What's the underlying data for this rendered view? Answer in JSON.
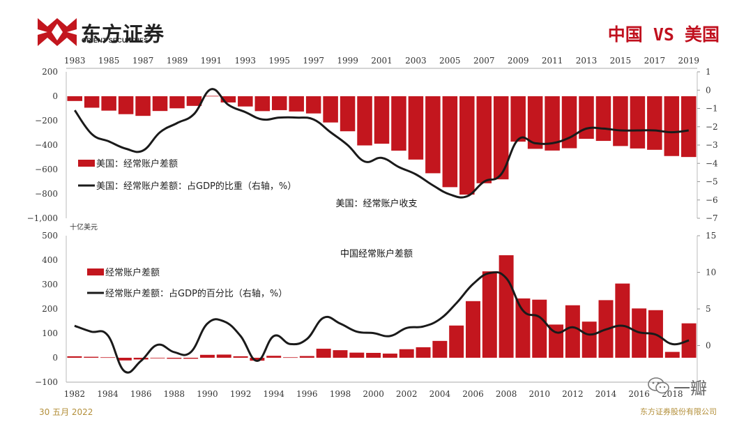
{
  "header": {
    "logo_cn": "东方证券",
    "logo_en": "ORIENT SECURITIES",
    "title": "中国 VS 美国"
  },
  "footer": {
    "date": "30 五月 2022",
    "company": "东方证券股份有限公司",
    "watermark": "一瓣"
  },
  "colors": {
    "bar": "#c3161e",
    "line": "#1a1a1a",
    "title": "#c0101e",
    "footer": "#b38f3a"
  },
  "chart_data": [
    {
      "type": "bar",
      "title": "美国：经常账户收支",
      "unit_label": "十亿美元",
      "x_ticks": [
        "1983",
        "1985",
        "1987",
        "1989",
        "1991",
        "1993",
        "1995",
        "1997",
        "1999",
        "2001",
        "2003",
        "2005",
        "2007",
        "2009",
        "2011",
        "2013",
        "2015",
        "2017",
        "2019"
      ],
      "x_axis_position": "top",
      "x": [
        1983,
        1984,
        1985,
        1986,
        1987,
        1988,
        1989,
        1990,
        1991,
        1992,
        1993,
        1994,
        1995,
        1996,
        1997,
        1998,
        1999,
        2000,
        2001,
        2002,
        2003,
        2004,
        2005,
        2006,
        2007,
        2008,
        2009,
        2010,
        2011,
        2012,
        2013,
        2014,
        2015,
        2016,
        2017,
        2018,
        2019
      ],
      "ylim": [
        -1000,
        200
      ],
      "y_ticks": [
        200,
        0,
        -200,
        -400,
        -600,
        -800,
        -1000
      ],
      "y_tick_labels": [
        "200",
        "0",
        "−200",
        "−400",
        "−600",
        "−800",
        "−1,000"
      ],
      "y2lim": [
        -7,
        1
      ],
      "y2_ticks": [
        1,
        0,
        -1,
        -2,
        -3,
        -4,
        -5,
        -6,
        -7
      ],
      "legend_position": "bottom-left",
      "series": [
        {
          "name": "美国：经常账户差额",
          "kind": "bar",
          "axis": "left",
          "values": [
            -39,
            -94,
            -118,
            -147,
            -161,
            -121,
            -99,
            -79,
            3,
            -51,
            -84,
            -122,
            -114,
            -125,
            -141,
            -215,
            -287,
            -403,
            -389,
            -446,
            -519,
            -631,
            -745,
            -806,
            -713,
            -681,
            -372,
            -431,
            -445,
            -426,
            -349,
            -366,
            -408,
            -428,
            -439,
            -490,
            -498
          ]
        },
        {
          "name": "美国：经常账户差额：占GDP的比重（右轴，%）",
          "kind": "line",
          "axis": "right",
          "values": [
            -1.1,
            -2.4,
            -2.8,
            -3.2,
            -3.3,
            -2.3,
            -1.8,
            -1.3,
            0.05,
            -0.8,
            -1.2,
            -1.6,
            -1.5,
            -1.5,
            -1.6,
            -2.3,
            -3.0,
            -3.9,
            -3.7,
            -4.2,
            -4.6,
            -5.2,
            -5.7,
            -5.8,
            -5.0,
            -4.6,
            -2.7,
            -2.9,
            -2.9,
            -2.6,
            -2.1,
            -2.1,
            -2.2,
            -2.2,
            -2.2,
            -2.3,
            -2.2
          ]
        }
      ]
    },
    {
      "type": "bar",
      "title": "中国经常账户差额",
      "x_ticks": [
        "1982",
        "1984",
        "1986",
        "1988",
        "1990",
        "1992",
        "1994",
        "1996",
        "1998",
        "2000",
        "2002",
        "2004",
        "2006",
        "2008",
        "2010",
        "2012",
        "2014",
        "2016",
        "2018"
      ],
      "x_axis_position": "bottom",
      "x": [
        1982,
        1983,
        1984,
        1985,
        1986,
        1987,
        1988,
        1989,
        1990,
        1991,
        1992,
        1993,
        1994,
        1995,
        1996,
        1997,
        1998,
        1999,
        2000,
        2001,
        2002,
        2003,
        2004,
        2005,
        2006,
        2007,
        2008,
        2009,
        2010,
        2011,
        2012,
        2013,
        2014,
        2015,
        2016,
        2017,
        2018,
        2019
      ],
      "ylim": [
        -100,
        500
      ],
      "y_ticks": [
        500,
        400,
        300,
        200,
        100,
        0,
        -100
      ],
      "y_tick_labels": [
        "500",
        "400",
        "300",
        "200",
        "100",
        "0",
        "−100"
      ],
      "y2lim": [
        -5,
        15
      ],
      "y2_ticks": [
        15,
        10,
        5,
        0
      ],
      "legend_position": "top-left",
      "series": [
        {
          "name": "经常账户差额",
          "kind": "bar",
          "axis": "left",
          "values": [
            6,
            4,
            2,
            -11,
            -7,
            0,
            -4,
            -4,
            12,
            13,
            6,
            -12,
            8,
            2,
            7,
            37,
            31,
            21,
            20,
            17,
            35,
            43,
            69,
            132,
            232,
            354,
            420,
            243,
            238,
            136,
            215,
            148,
            236,
            304,
            202,
            195,
            24,
            141
          ]
        },
        {
          "name": "经常账户差额：占GDP的百分比（右轴，%）",
          "kind": "line",
          "axis": "right",
          "values": [
            2.7,
            1.9,
            1.4,
            -3.5,
            -2.1,
            0.1,
            -0.9,
            -0.9,
            3.0,
            3.3,
            1.3,
            -2.1,
            1.3,
            0.2,
            0.9,
            3.8,
            3.0,
            1.9,
            1.7,
            1.3,
            2.4,
            2.6,
            3.6,
            5.8,
            8.4,
            9.9,
            9.2,
            4.8,
            3.9,
            1.8,
            2.5,
            1.5,
            2.2,
            2.7,
            1.8,
            1.5,
            0.2,
            0.7
          ]
        }
      ]
    }
  ]
}
